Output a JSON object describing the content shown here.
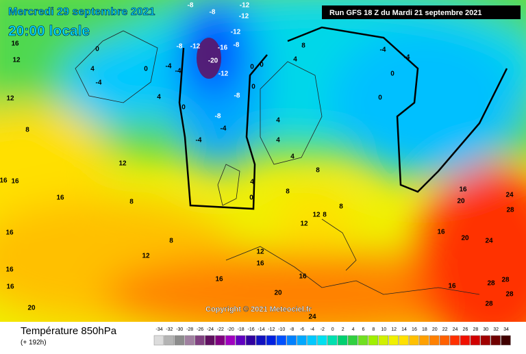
{
  "header": {
    "date": "Mercredi 29 septembre 2021",
    "time": "20:00 locale",
    "run": "Run GFS 18 Z du Mardi 21 septembre 2021"
  },
  "copyright": "Copyright © 2021 Meteociel.fr",
  "footer": {
    "title": "Température 850hPa",
    "lead": "(+ 192h)"
  },
  "scale": {
    "values": [
      -34,
      -32,
      -30,
      -28,
      -26,
      -24,
      -22,
      -20,
      -18,
      -16,
      -14,
      -12,
      -10,
      -8,
      -6,
      -4,
      -2,
      0,
      2,
      4,
      6,
      8,
      10,
      12,
      14,
      16,
      18,
      20,
      22,
      24,
      26,
      28,
      30,
      32,
      34
    ],
    "colors": [
      "#dcdcdc",
      "#b4b4b4",
      "#8c8c8c",
      "#a080a0",
      "#804080",
      "#601060",
      "#800080",
      "#a000c0",
      "#6000c0",
      "#3000a0",
      "#1010c0",
      "#0020e0",
      "#0050ff",
      "#0080ff",
      "#00a8ff",
      "#00c8ff",
      "#00e0f0",
      "#00e0b0",
      "#00d070",
      "#30d040",
      "#70e020",
      "#a0f000",
      "#d0f000",
      "#f0f000",
      "#ffe000",
      "#ffc000",
      "#ffa000",
      "#ff8000",
      "#ff6000",
      "#ff3000",
      "#f01000",
      "#d00000",
      "#a00000",
      "#700000",
      "#400000"
    ]
  },
  "map": {
    "contour_labels": [
      -8,
      -8,
      -12,
      -12,
      -12,
      -8,
      -12,
      -16,
      -20,
      -12,
      -8,
      -4,
      -4,
      0,
      0,
      4,
      -4,
      4,
      0,
      -8,
      -8,
      -4,
      -4,
      0,
      0,
      0,
      4,
      8,
      -4,
      -4,
      0,
      0,
      4,
      4,
      4,
      8,
      4,
      0,
      8,
      12,
      8,
      8,
      12,
      16,
      12,
      8,
      12,
      16,
      16,
      16,
      8,
      16,
      8,
      12,
      16,
      16,
      20,
      12,
      16,
      16,
      16,
      20,
      24,
      16,
      16,
      20,
      24,
      20,
      16,
      24,
      28,
      28,
      28,
      28,
      28,
      12
    ]
  }
}
